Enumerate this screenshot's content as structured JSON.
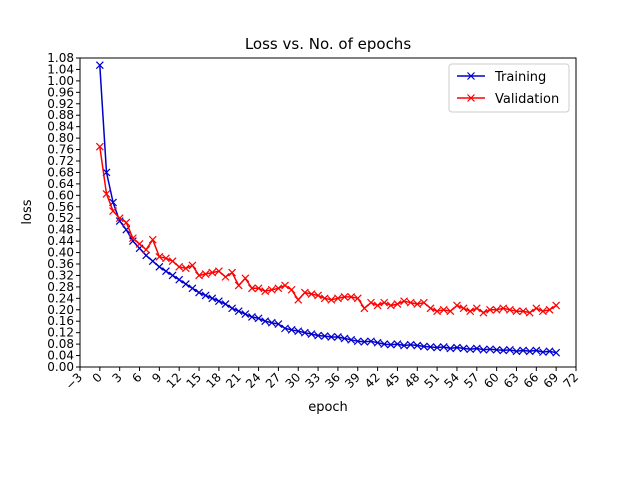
{
  "chart_data": {
    "type": "line",
    "title": "Loss vs. No. of epochs",
    "xlabel": "epoch",
    "ylabel": "loss",
    "xlim": [
      -3,
      72
    ],
    "ylim": [
      0,
      1.08
    ],
    "xticks": [
      -3,
      0,
      3,
      6,
      9,
      12,
      15,
      18,
      21,
      24,
      27,
      30,
      33,
      36,
      39,
      42,
      45,
      48,
      51,
      54,
      57,
      60,
      63,
      66,
      69,
      72
    ],
    "xtick_labels": [
      "−3",
      "0",
      "3",
      "6",
      "9",
      "12",
      "15",
      "18",
      "21",
      "24",
      "27",
      "30",
      "33",
      "36",
      "39",
      "42",
      "45",
      "48",
      "51",
      "54",
      "57",
      "60",
      "63",
      "66",
      "69",
      "72"
    ],
    "yticks": [
      0,
      0.04,
      0.08,
      0.12,
      0.16,
      0.2,
      0.24,
      0.28,
      0.32,
      0.36,
      0.4,
      0.44,
      0.48,
      0.52,
      0.56,
      0.6,
      0.64,
      0.68,
      0.72,
      0.76,
      0.8,
      0.84,
      0.88,
      0.92,
      0.96,
      1.0,
      1.04,
      1.08
    ],
    "ytick_labels": [
      "0.00",
      "0.04",
      "0.08",
      "0.12",
      "0.16",
      "0.20",
      "0.24",
      "0.28",
      "0.32",
      "0.36",
      "0.40",
      "0.44",
      "0.48",
      "0.52",
      "0.56",
      "0.60",
      "0.64",
      "0.68",
      "0.72",
      "0.76",
      "0.80",
      "0.84",
      "0.88",
      "0.92",
      "0.96",
      "1.00",
      "1.04",
      "1.08"
    ],
    "grid": false,
    "legend_position": "top-right",
    "series": [
      {
        "name": "Training",
        "color": "#0000cc",
        "marker": "x",
        "x": [
          0,
          1,
          2,
          3,
          4,
          5,
          6,
          7,
          8,
          9,
          10,
          11,
          12,
          13,
          14,
          15,
          16,
          17,
          18,
          19,
          20,
          21,
          22,
          23,
          24,
          25,
          26,
          27,
          28,
          29,
          30,
          31,
          32,
          33,
          34,
          35,
          36,
          37,
          38,
          39,
          40,
          41,
          42,
          43,
          44,
          45,
          46,
          47,
          48,
          49,
          50,
          51,
          52,
          53,
          54,
          55,
          56,
          57,
          58,
          59,
          60,
          61,
          62,
          63,
          64,
          65,
          66,
          67,
          68,
          69
        ],
        "y": [
          1.055,
          0.68,
          0.575,
          0.51,
          0.48,
          0.44,
          0.415,
          0.39,
          0.37,
          0.35,
          0.335,
          0.32,
          0.305,
          0.29,
          0.275,
          0.26,
          0.25,
          0.24,
          0.23,
          0.22,
          0.205,
          0.195,
          0.185,
          0.175,
          0.17,
          0.16,
          0.155,
          0.15,
          0.135,
          0.13,
          0.125,
          0.12,
          0.115,
          0.11,
          0.108,
          0.105,
          0.105,
          0.1,
          0.095,
          0.09,
          0.088,
          0.09,
          0.085,
          0.08,
          0.078,
          0.08,
          0.075,
          0.078,
          0.075,
          0.072,
          0.07,
          0.068,
          0.07,
          0.065,
          0.068,
          0.065,
          0.062,
          0.065,
          0.06,
          0.062,
          0.06,
          0.058,
          0.06,
          0.055,
          0.058,
          0.055,
          0.058,
          0.052,
          0.055,
          0.05
        ]
      },
      {
        "name": "Validation",
        "color": "#ff0000",
        "marker": "x",
        "x": [
          0,
          1,
          2,
          3,
          4,
          5,
          6,
          7,
          8,
          9,
          10,
          11,
          12,
          13,
          14,
          15,
          16,
          17,
          18,
          19,
          20,
          21,
          22,
          23,
          24,
          25,
          26,
          27,
          28,
          29,
          30,
          31,
          32,
          33,
          34,
          35,
          36,
          37,
          38,
          39,
          40,
          41,
          42,
          43,
          44,
          45,
          46,
          47,
          48,
          49,
          50,
          51,
          52,
          53,
          54,
          55,
          56,
          57,
          58,
          59,
          60,
          61,
          62,
          63,
          64,
          65,
          66,
          67,
          68,
          69
        ],
        "y": [
          0.77,
          0.605,
          0.545,
          0.52,
          0.505,
          0.45,
          0.43,
          0.41,
          0.445,
          0.385,
          0.38,
          0.37,
          0.35,
          0.345,
          0.355,
          0.32,
          0.325,
          0.33,
          0.335,
          0.315,
          0.33,
          0.285,
          0.31,
          0.275,
          0.275,
          0.265,
          0.27,
          0.275,
          0.285,
          0.27,
          0.235,
          0.26,
          0.255,
          0.25,
          0.24,
          0.235,
          0.24,
          0.245,
          0.245,
          0.24,
          0.205,
          0.225,
          0.215,
          0.225,
          0.215,
          0.22,
          0.23,
          0.225,
          0.22,
          0.225,
          0.205,
          0.195,
          0.2,
          0.195,
          0.215,
          0.205,
          0.195,
          0.205,
          0.19,
          0.2,
          0.2,
          0.205,
          0.2,
          0.195,
          0.195,
          0.19,
          0.205,
          0.195,
          0.2,
          0.215
        ]
      }
    ]
  }
}
